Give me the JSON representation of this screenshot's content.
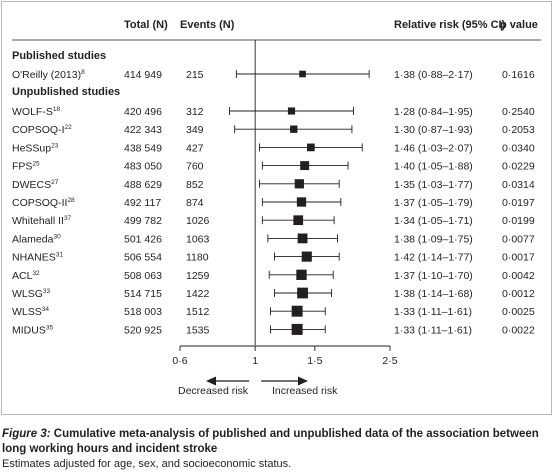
{
  "header": {
    "total": "Total (N)",
    "events": "Events (N)",
    "rr": "Relative risk (95% CI)",
    "p": "p value"
  },
  "sections": {
    "published": "Published studies",
    "unpublished": "Unpublished studies"
  },
  "axis_labels": {
    "decreased": "Decreased risk",
    "increased": "Increased risk"
  },
  "caption": {
    "label": "Figure 3:",
    "title": " Cumulative meta-analysis of published and unpublished data of the association between long working hours and incident stroke",
    "note": "Estimates adjusted for age, sex, and socioeconomic status."
  },
  "chart_data": {
    "type": "forest",
    "reference_line": 1,
    "xlim": [
      0.6,
      2.5
    ],
    "xticks": [
      0.6,
      1,
      1.5,
      2.5
    ],
    "xtick_labels": [
      "0·6",
      "1",
      "1·5",
      "2·5"
    ],
    "log_scale": true,
    "rows": [
      {
        "study": "O'Reilly (2013)",
        "sup": "8",
        "section": "published",
        "total": "414 949",
        "events": "215",
        "rr": 1.38,
        "lo": 0.88,
        "hi": 2.17,
        "rr_text": "1·38 (0·88–2·17)",
        "p": "0·1616"
      },
      {
        "study": "WOLF-S",
        "sup": "18",
        "section": "unpublished",
        "total": "420 496",
        "events": "312",
        "rr": 1.28,
        "lo": 0.84,
        "hi": 1.95,
        "rr_text": "1·28 (0·84–1·95)",
        "p": "0·2540"
      },
      {
        "study": "COPSOQ-I",
        "sup": "22",
        "section": "unpublished",
        "total": "422 343",
        "events": "349",
        "rr": 1.3,
        "lo": 0.87,
        "hi": 1.93,
        "rr_text": "1·30 (0·87–1·93)",
        "p": "0·2053"
      },
      {
        "study": "HeSSup",
        "sup": "23",
        "section": "unpublished",
        "total": "438 549",
        "events": "427",
        "rr": 1.46,
        "lo": 1.03,
        "hi": 2.07,
        "rr_text": "1·46 (1·03–2·07)",
        "p": "0·0340"
      },
      {
        "study": "FPS",
        "sup": "25",
        "section": "unpublished",
        "total": "483 050",
        "events": "760",
        "rr": 1.4,
        "lo": 1.05,
        "hi": 1.88,
        "rr_text": "1·40 (1·05–1·88)",
        "p": "0·0229"
      },
      {
        "study": "DWECS",
        "sup": "27",
        "section": "unpublished",
        "total": "488 629",
        "events": "852",
        "rr": 1.35,
        "lo": 1.03,
        "hi": 1.77,
        "rr_text": "1·35 (1·03–1·77)",
        "p": "0·0314"
      },
      {
        "study": "COPSOQ-II",
        "sup": "28",
        "section": "unpublished",
        "total": "492 117",
        "events": "874",
        "rr": 1.37,
        "lo": 1.05,
        "hi": 1.79,
        "rr_text": "1·37 (1·05–1·79)",
        "p": "0·0197"
      },
      {
        "study": "Whitehall II",
        "sup": "37",
        "section": "unpublished",
        "total": "499 782",
        "events": "1026",
        "rr": 1.34,
        "lo": 1.05,
        "hi": 1.71,
        "rr_text": "1·34 (1·05–1·71)",
        "p": "0·0199"
      },
      {
        "study": "Alameda",
        "sup": "30",
        "section": "unpublished",
        "total": "501 426",
        "events": "1063",
        "rr": 1.38,
        "lo": 1.09,
        "hi": 1.75,
        "rr_text": "1·38 (1·09–1·75)",
        "p": "0·0077"
      },
      {
        "study": "NHANES",
        "sup": "31",
        "section": "unpublished",
        "total": "506 554",
        "events": "1180",
        "rr": 1.42,
        "lo": 1.14,
        "hi": 1.77,
        "rr_text": "1·42 (1·14–1·77)",
        "p": "0·0017"
      },
      {
        "study": "ACL",
        "sup": "32",
        "section": "unpublished",
        "total": "508 063",
        "events": "1259",
        "rr": 1.37,
        "lo": 1.1,
        "hi": 1.7,
        "rr_text": "1·37 (1·10–1·70)",
        "p": "0·0042"
      },
      {
        "study": "WLSG",
        "sup": "33",
        "section": "unpublished",
        "total": "514 715",
        "events": "1422",
        "rr": 1.38,
        "lo": 1.14,
        "hi": 1.68,
        "rr_text": "1·38 (1·14–1·68)",
        "p": "0·0012"
      },
      {
        "study": "WLSS",
        "sup": "34",
        "section": "unpublished",
        "total": "518 003",
        "events": "1512",
        "rr": 1.33,
        "lo": 1.11,
        "hi": 1.61,
        "rr_text": "1·33 (1·11–1·61)",
        "p": "0·0025"
      },
      {
        "study": "MIDUS",
        "sup": "35",
        "section": "unpublished",
        "total": "520 925",
        "events": "1535",
        "rr": 1.33,
        "lo": 1.11,
        "hi": 1.61,
        "rr_text": "1·33 (1·11–1·61)",
        "p": "0·0022"
      }
    ]
  }
}
